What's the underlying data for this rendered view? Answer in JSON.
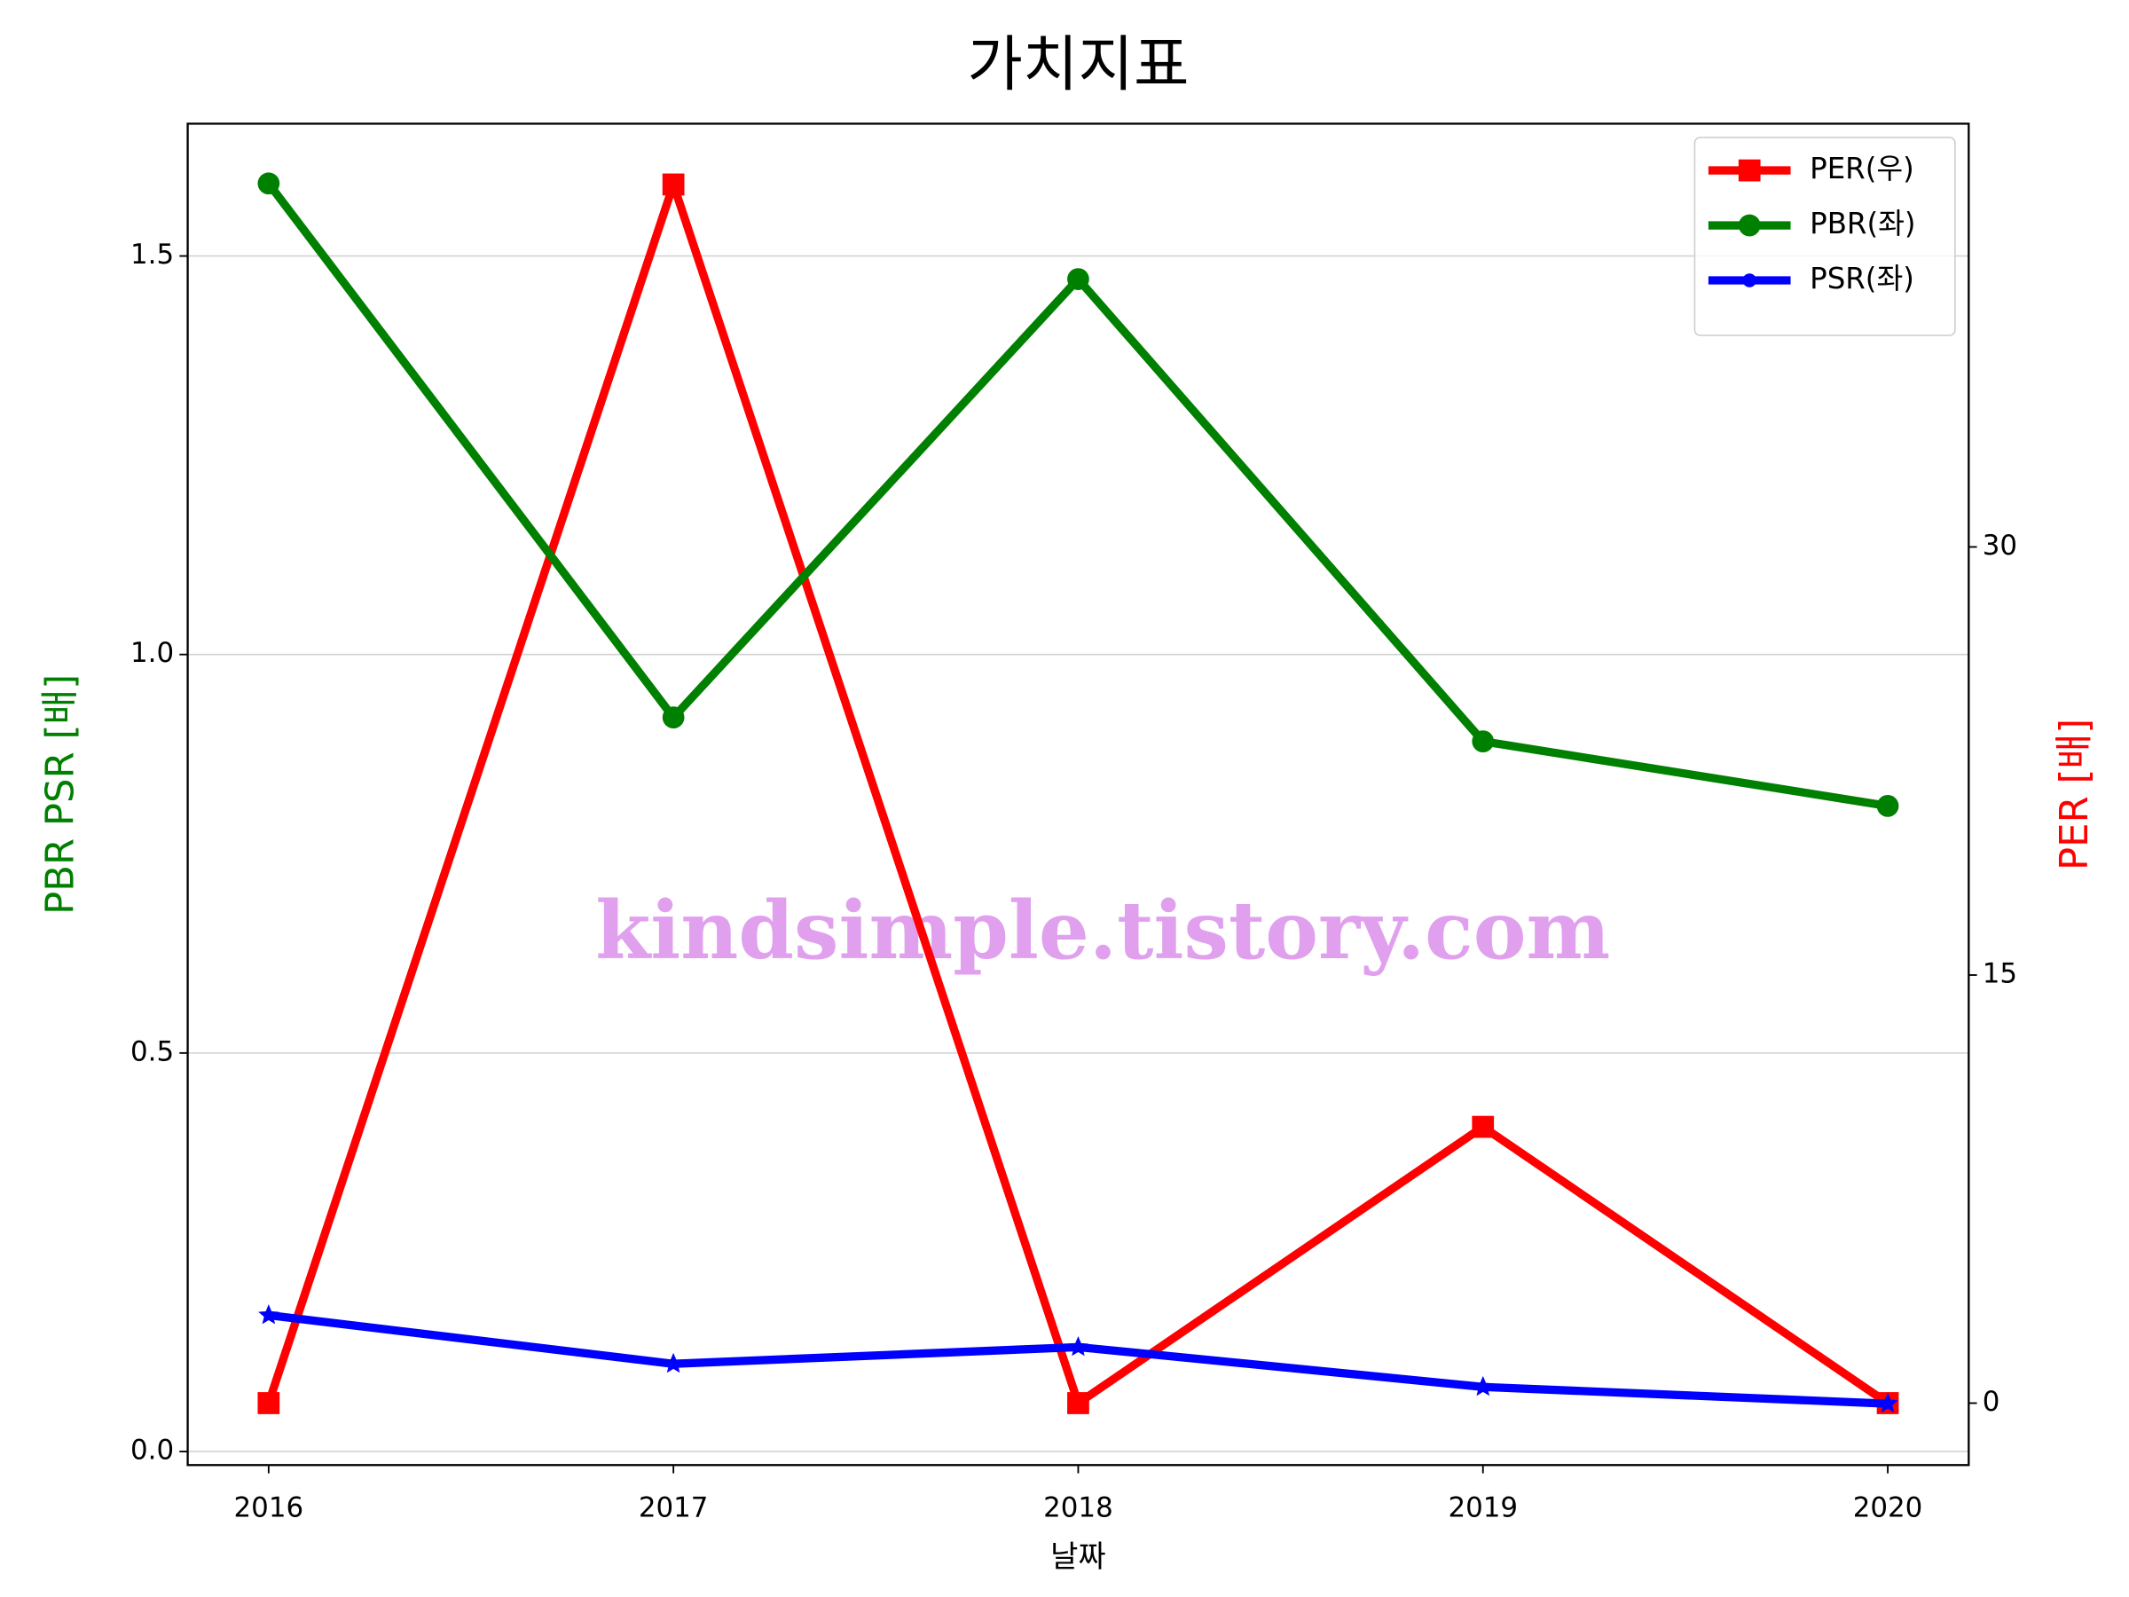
{
  "chart_data": {
    "type": "line",
    "title": "가치지표",
    "xlabel": "날짜",
    "ylabel": "PBR PSR [배]",
    "y2label": "PER [배]",
    "x": [
      2016,
      2017,
      2018,
      2019,
      2020
    ],
    "xlim": [
      2015.8,
      2020.2
    ],
    "xticks": [
      2016,
      2017,
      2018,
      2019,
      2020
    ],
    "ylim": [
      -0.017,
      1.666
    ],
    "yticks": [
      {
        "value": 0,
        "label": "0.0"
      },
      0.5,
      {
        "value": 1,
        "label": "1.0"
      },
      1.5
    ],
    "y2lim": [
      -2.17,
      44.83
    ],
    "y2ticks": [
      0,
      15,
      30
    ],
    "grid": true,
    "legend": "upper right",
    "watermark": "kindsimple.tistory.com",
    "series": [
      {
        "name": "PER(우)",
        "color": "#ff0000",
        "marker": "square",
        "axis": "y2",
        "values": [
          0,
          42.7,
          0,
          9.68,
          0
        ]
      },
      {
        "name": "PBR(좌)",
        "color": "#008000",
        "marker": "circle",
        "values": [
          1.591,
          0.921,
          1.471,
          0.891,
          0.81
        ]
      },
      {
        "name": "PSR(좌)",
        "color": "#0000ff",
        "marker": "star",
        "values": [
          0.171,
          0.11,
          0.131,
          0.081,
          0.06
        ]
      }
    ]
  }
}
